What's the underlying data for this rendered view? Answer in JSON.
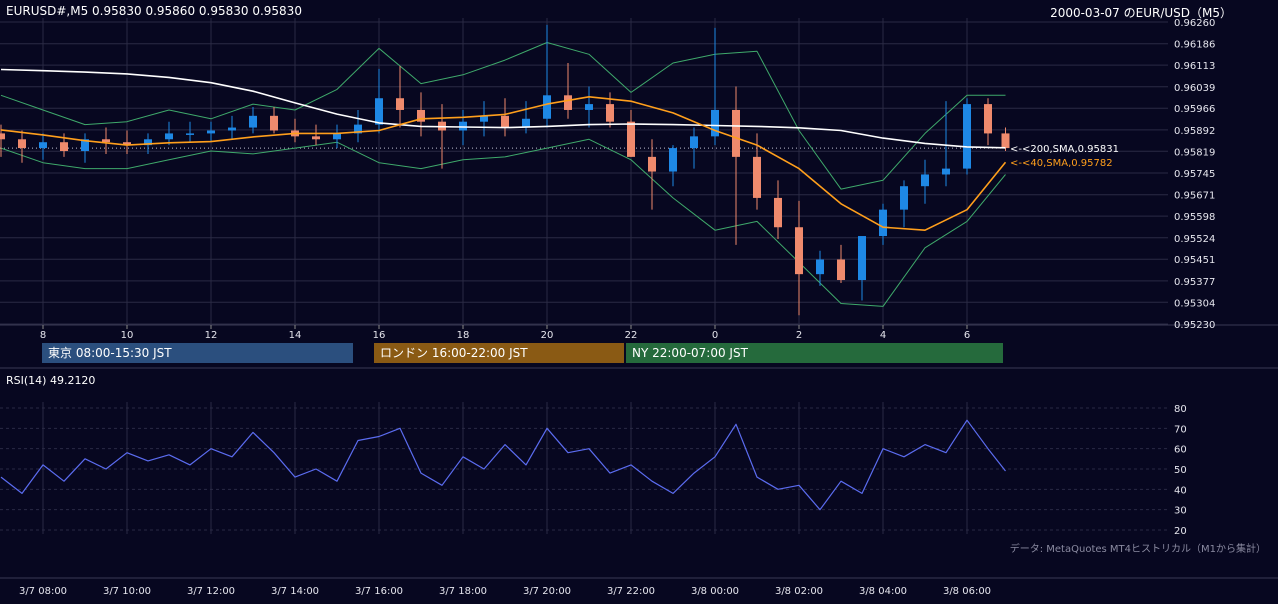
{
  "header": {
    "symbol_line": "EURUSD#,M5  0.95830 0.95860 0.95830 0.95830",
    "title_right": "2000-03-07 のEUR/USD（M5）"
  },
  "colors": {
    "background": "#070720",
    "grid": "#2a2a44",
    "candle_up": "#1e88e5",
    "candle_down": "#ef8a6d",
    "sma200": "#ffffff",
    "sma40": "#ff9f1c",
    "bollinger": "#3fa96b",
    "rsi_line": "#5b6cf0",
    "tokyo_session": "#2b4f7e",
    "london_session": "#8a5a14",
    "ny_session": "#256a3c"
  },
  "sessions": [
    {
      "label": "東京 08:00-15:30 JST",
      "color": "#2b4f7e"
    },
    {
      "label": "ロンドン 16:00-22:00 JST",
      "color": "#8a5a14"
    },
    {
      "label": "NY 22:00-07:00 JST",
      "color": "#256a3c"
    }
  ],
  "rsi": {
    "label": "RSI(14) 49.2120",
    "ticks": [
      "80",
      "70",
      "60",
      "50",
      "40",
      "30",
      "20"
    ],
    "ylim": [
      20,
      80
    ]
  },
  "source_note": "データ: MetaQuotes MT4ヒストリカル（M1から集計）",
  "chart_data": [
    {
      "type": "line",
      "title": "EURUSD#,M5",
      "y_ticks": [
        "0.96260",
        "0.96186",
        "0.96113",
        "0.96039",
        "0.95966",
        "0.95892",
        "0.95819",
        "0.95745",
        "0.95671",
        "0.95598",
        "0.95524",
        "0.95451",
        "0.95377",
        "0.95304",
        "0.95230"
      ],
      "ylim": [
        0.9523,
        0.9626
      ],
      "x_hour_ticks": [
        "8",
        "10",
        "12",
        "14",
        "16",
        "18",
        "20",
        "22",
        "0",
        "2",
        "4",
        "6"
      ],
      "x_date_ticks": [
        "3/7 08:00",
        "3/7 10:00",
        "3/7 12:00",
        "3/7 14:00",
        "3/7 16:00",
        "3/7 18:00",
        "3/7 20:00",
        "3/7 22:00",
        "3/8 00:00",
        "3/8 02:00",
        "3/8 04:00",
        "3/8 06:00"
      ],
      "last_price": 0.9583,
      "series": [
        {
          "name": "200,SMA",
          "label": "<-<200,SMA,0.95831",
          "x": [
            "3/7 07:00",
            "3/7 08:00",
            "3/7 09:00",
            "3/7 10:00",
            "3/7 11:00",
            "3/7 12:00",
            "3/7 13:00",
            "3/7 14:00",
            "3/7 15:00",
            "3/7 16:00",
            "3/7 17:00",
            "3/7 18:00",
            "3/7 19:00",
            "3/7 20:00",
            "3/7 21:00",
            "3/7 22:00",
            "3/7 23:00",
            "3/8 00:00",
            "3/8 01:00",
            "3/8 02:00",
            "3/8 03:00",
            "3/8 04:00",
            "3/8 05:00",
            "3/8 06:00",
            "3/8 06:55"
          ],
          "y": [
            0.96098,
            0.96094,
            0.96089,
            0.96083,
            0.96071,
            0.96053,
            0.96024,
            0.95984,
            0.95946,
            0.95916,
            0.95904,
            0.95902,
            0.959,
            0.95904,
            0.9591,
            0.95912,
            0.9591,
            0.95907,
            0.95904,
            0.95899,
            0.9589,
            0.95864,
            0.95846,
            0.95834,
            0.95831
          ]
        },
        {
          "name": "40,SMA",
          "label": "<-<40,SMA,0.95782",
          "x": [
            "3/7 07:00",
            "3/7 08:00",
            "3/7 09:00",
            "3/7 10:00",
            "3/7 11:00",
            "3/7 12:00",
            "3/7 13:00",
            "3/7 14:00",
            "3/7 15:00",
            "3/7 16:00",
            "3/7 17:00",
            "3/7 18:00",
            "3/7 19:00",
            "3/7 20:00",
            "3/7 21:00",
            "3/7 22:00",
            "3/7 23:00",
            "3/8 00:00",
            "3/8 01:00",
            "3/8 02:00",
            "3/8 03:00",
            "3/8 04:00",
            "3/8 05:00",
            "3/8 06:00",
            "3/8 06:55"
          ],
          "y": [
            0.95892,
            0.95875,
            0.95855,
            0.9584,
            0.95848,
            0.95852,
            0.95868,
            0.9588,
            0.9588,
            0.9589,
            0.9593,
            0.95935,
            0.95945,
            0.9598,
            0.96005,
            0.9599,
            0.9595,
            0.9589,
            0.9584,
            0.9576,
            0.9564,
            0.9556,
            0.9555,
            0.9562,
            0.95782
          ]
        },
        {
          "name": "BB upper",
          "x": [
            "3/7 07:00",
            "3/7 08:00",
            "3/7 09:00",
            "3/7 10:00",
            "3/7 11:00",
            "3/7 12:00",
            "3/7 13:00",
            "3/7 14:00",
            "3/7 15:00",
            "3/7 16:00",
            "3/7 17:00",
            "3/7 18:00",
            "3/7 19:00",
            "3/7 20:00",
            "3/7 21:00",
            "3/7 22:00",
            "3/7 23:00",
            "3/8 00:00",
            "3/8 01:00",
            "3/8 02:00",
            "3/8 03:00",
            "3/8 04:00",
            "3/8 05:00",
            "3/8 06:00",
            "3/8 06:55"
          ],
          "y": [
            0.9601,
            0.9596,
            0.9591,
            0.9592,
            0.9596,
            0.9593,
            0.9598,
            0.9596,
            0.9603,
            0.9617,
            0.9605,
            0.9608,
            0.9613,
            0.9619,
            0.9615,
            0.9602,
            0.9612,
            0.9615,
            0.9616,
            0.9589,
            0.9569,
            0.9572,
            0.9588,
            0.9601,
            0.9601
          ]
        },
        {
          "name": "BB lower",
          "x": [
            "3/7 07:00",
            "3/7 08:00",
            "3/7 09:00",
            "3/7 10:00",
            "3/7 11:00",
            "3/7 12:00",
            "3/7 13:00",
            "3/7 14:00",
            "3/7 15:00",
            "3/7 16:00",
            "3/7 17:00",
            "3/7 18:00",
            "3/7 19:00",
            "3/7 20:00",
            "3/7 21:00",
            "3/7 22:00",
            "3/7 23:00",
            "3/8 00:00",
            "3/8 01:00",
            "3/8 02:00",
            "3/8 03:00",
            "3/8 04:00",
            "3/8 05:00",
            "3/8 06:00",
            "3/8 06:55"
          ],
          "y": [
            0.9583,
            0.9578,
            0.9576,
            0.9576,
            0.9579,
            0.9582,
            0.9581,
            0.9583,
            0.9585,
            0.9578,
            0.9576,
            0.9579,
            0.958,
            0.9583,
            0.9586,
            0.9579,
            0.9566,
            0.9555,
            0.9558,
            0.9544,
            0.953,
            0.9529,
            0.9549,
            0.9558,
            0.9574
          ]
        }
      ],
      "candles": {
        "note_x_units": "time",
        "t": [
          "3/7 07:00",
          "3/7 07:30",
          "3/7 08:00",
          "3/7 08:30",
          "3/7 09:00",
          "3/7 09:30",
          "3/7 10:00",
          "3/7 10:30",
          "3/7 11:00",
          "3/7 11:30",
          "3/7 12:00",
          "3/7 12:30",
          "3/7 13:00",
          "3/7 13:30",
          "3/7 14:00",
          "3/7 14:30",
          "3/7 15:00",
          "3/7 15:30",
          "3/7 16:00",
          "3/7 16:30",
          "3/7 17:00",
          "3/7 17:30",
          "3/7 18:00",
          "3/7 18:30",
          "3/7 19:00",
          "3/7 19:30",
          "3/7 20:00",
          "3/7 20:30",
          "3/7 21:00",
          "3/7 21:30",
          "3/7 22:00",
          "3/7 22:30",
          "3/7 23:00",
          "3/7 23:30",
          "3/8 00:00",
          "3/8 00:30",
          "3/8 01:00",
          "3/8 01:30",
          "3/8 02:00",
          "3/8 02:30",
          "3/8 03:00",
          "3/8 03:30",
          "3/8 04:00",
          "3/8 04:30",
          "3/8 05:00",
          "3/8 05:30",
          "3/8 06:00",
          "3/8 06:30",
          "3/8 06:55"
        ],
        "open": [
          0.9588,
          0.9586,
          0.9583,
          0.9585,
          0.9582,
          0.9586,
          0.9585,
          0.9584,
          0.9586,
          0.9588,
          0.9588,
          0.9589,
          0.959,
          0.9594,
          0.9589,
          0.9587,
          0.9586,
          0.9588,
          0.9591,
          0.96,
          0.9596,
          0.9592,
          0.9589,
          0.9592,
          0.9594,
          0.959,
          0.9593,
          0.9601,
          0.9596,
          0.9598,
          0.9592,
          0.958,
          0.9575,
          0.9583,
          0.9587,
          0.9596,
          0.958,
          0.9566,
          0.9556,
          0.954,
          0.9545,
          0.9538,
          0.9553,
          0.9562,
          0.957,
          0.9574,
          0.9576,
          0.9598,
          0.9588
        ],
        "high": [
          0.9591,
          0.9589,
          0.9588,
          0.9588,
          0.9588,
          0.959,
          0.9589,
          0.9588,
          0.9592,
          0.9592,
          0.9592,
          0.9594,
          0.9597,
          0.9597,
          0.9593,
          0.9591,
          0.9591,
          0.9596,
          0.961,
          0.9611,
          0.9602,
          0.9598,
          0.9596,
          0.9599,
          0.96,
          0.9599,
          0.9625,
          0.9612,
          0.9604,
          0.9602,
          0.9596,
          0.9586,
          0.9584,
          0.959,
          0.9624,
          0.9604,
          0.9588,
          0.9572,
          0.9565,
          0.9548,
          0.955,
          0.9548,
          0.9564,
          0.9572,
          0.9579,
          0.9599,
          0.96,
          0.96,
          0.959
        ],
        "low": [
          0.958,
          0.9578,
          0.9579,
          0.958,
          0.9578,
          0.9581,
          0.9581,
          0.9581,
          0.9584,
          0.9585,
          0.9585,
          0.9586,
          0.9588,
          0.9588,
          0.9585,
          0.9584,
          0.9583,
          0.9585,
          0.9588,
          0.959,
          0.9587,
          0.9576,
          0.9584,
          0.9587,
          0.9587,
          0.9588,
          0.959,
          0.9593,
          0.959,
          0.959,
          0.958,
          0.9562,
          0.957,
          0.9576,
          0.9584,
          0.955,
          0.9562,
          0.9552,
          0.9526,
          0.9536,
          0.9537,
          0.9531,
          0.955,
          0.9556,
          0.9564,
          0.957,
          0.9574,
          0.9584,
          0.9582
        ],
        "close": [
          0.9586,
          0.9583,
          0.9585,
          0.9582,
          0.9586,
          0.9585,
          0.9584,
          0.9586,
          0.9588,
          0.9588,
          0.9589,
          0.959,
          0.9594,
          0.9589,
          0.9587,
          0.9586,
          0.9588,
          0.9591,
          0.96,
          0.9596,
          0.9592,
          0.9589,
          0.9592,
          0.9594,
          0.959,
          0.9593,
          0.9601,
          0.9596,
          0.9598,
          0.9592,
          0.958,
          0.9575,
          0.9583,
          0.9587,
          0.9596,
          0.958,
          0.9566,
          0.9556,
          0.954,
          0.9545,
          0.9538,
          0.9553,
          0.9562,
          0.957,
          0.9574,
          0.9576,
          0.9598,
          0.9588,
          0.9583
        ]
      }
    },
    {
      "type": "line",
      "title": "RSI(14)",
      "ylim": [
        20,
        80
      ],
      "series": [
        {
          "name": "RSI(14)",
          "x": [
            "3/7 07:00",
            "3/7 07:30",
            "3/7 08:00",
            "3/7 08:30",
            "3/7 09:00",
            "3/7 09:30",
            "3/7 10:00",
            "3/7 10:30",
            "3/7 11:00",
            "3/7 11:30",
            "3/7 12:00",
            "3/7 12:30",
            "3/7 13:00",
            "3/7 13:30",
            "3/7 14:00",
            "3/7 14:30",
            "3/7 15:00",
            "3/7 15:30",
            "3/7 16:00",
            "3/7 16:30",
            "3/7 17:00",
            "3/7 17:30",
            "3/7 18:00",
            "3/7 18:30",
            "3/7 19:00",
            "3/7 19:30",
            "3/7 20:00",
            "3/7 20:30",
            "3/7 21:00",
            "3/7 21:30",
            "3/7 22:00",
            "3/7 22:30",
            "3/7 23:00",
            "3/7 23:30",
            "3/8 00:00",
            "3/8 00:30",
            "3/8 01:00",
            "3/8 01:30",
            "3/8 02:00",
            "3/8 02:30",
            "3/8 03:00",
            "3/8 03:30",
            "3/8 04:00",
            "3/8 04:30",
            "3/8 05:00",
            "3/8 05:30",
            "3/8 06:00",
            "3/8 06:30",
            "3/8 06:55"
          ],
          "y": [
            46,
            38,
            52,
            44,
            55,
            50,
            58,
            54,
            57,
            52,
            60,
            56,
            68,
            58,
            46,
            50,
            44,
            64,
            66,
            70,
            48,
            42,
            56,
            50,
            62,
            52,
            70,
            58,
            60,
            48,
            52,
            44,
            38,
            48,
            56,
            72,
            46,
            40,
            42,
            30,
            44,
            38,
            60,
            56,
            62,
            58,
            74,
            60,
            49
          ]
        }
      ]
    }
  ]
}
